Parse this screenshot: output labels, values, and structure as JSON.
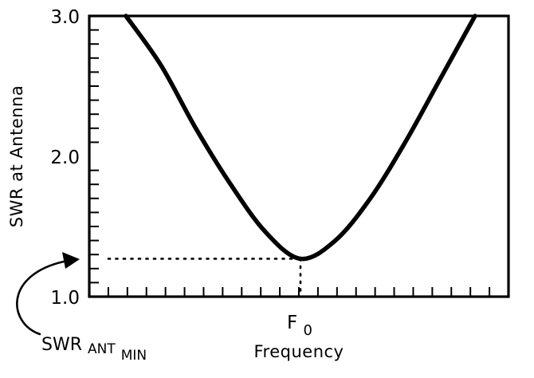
{
  "chart_data": {
    "type": "line",
    "xlabel": "Frequency",
    "ylabel": "SWR at Antenna",
    "y_ticks": [
      "1.0",
      "2.0",
      "3.0"
    ],
    "ylim": [
      1.0,
      3.0
    ],
    "x_tick_labels": [
      {
        "main": "F",
        "sub": "0"
      }
    ],
    "grid": false,
    "series": [
      {
        "x": [
          -1.0,
          -0.8,
          -0.6,
          -0.4,
          -0.2,
          0.0,
          0.2,
          0.4,
          0.6,
          0.8,
          1.0
        ],
        "y": [
          3.0,
          2.65,
          2.2,
          1.8,
          1.46,
          1.27,
          1.4,
          1.7,
          2.1,
          2.55,
          3.0
        ]
      }
    ],
    "annotations": {
      "minimum_label": {
        "main": "SWR",
        "sub1": "ANT",
        "sub2": "MIN"
      },
      "minimum_value": 1.27,
      "minimum_at_x": 0.0
    }
  }
}
